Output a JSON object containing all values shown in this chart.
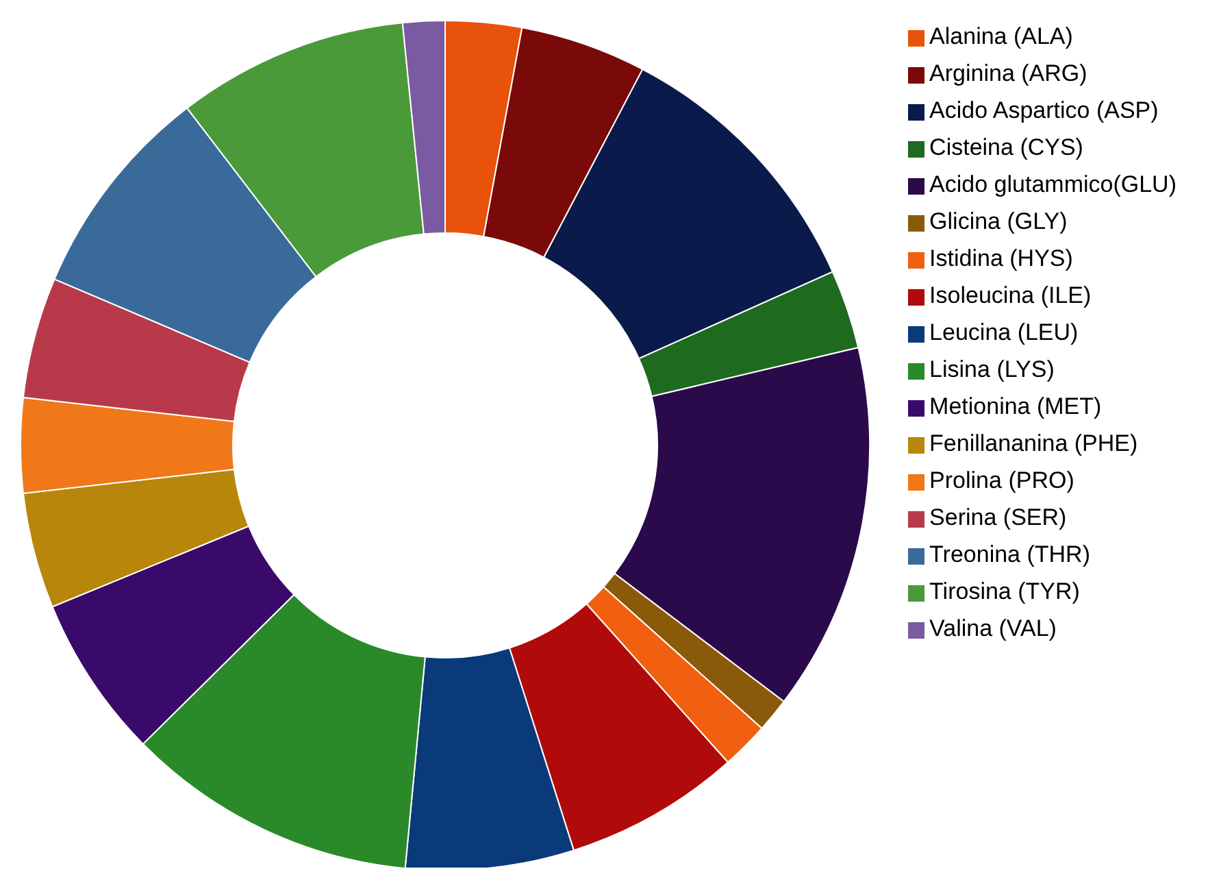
{
  "chart_data": {
    "type": "donut",
    "categories": [
      "Alanina (ALA)",
      "Arginina (ARG)",
      "Acido Aspartico (ASP)",
      "Cisteina (CYS)",
      "Acido glutammico(GLU)",
      "Glicina (GLY)",
      "Istidina (HYS)",
      "Isoleucina (ILE)",
      "Leucina (LEU)",
      "Lisina (LYS)",
      "Metionina (MET)",
      "Fenillananina (PHE)",
      "Prolina (PRO)",
      "Serina (SER)",
      "Treonina (THR)",
      "Tirosina (TYR)",
      "Valina (VAL)"
    ],
    "values": [
      2.9,
      4.8,
      10.6,
      3.0,
      14.0,
      1.3,
      1.8,
      6.7,
      6.4,
      11.1,
      6.2,
      4.4,
      3.6,
      4.6,
      8.2,
      8.8,
      1.6
    ],
    "colors": [
      "#e8520a",
      "#7a0a0a",
      "#0a1a4a",
      "#1e6a1e",
      "#2a0a4a",
      "#8a5a0a",
      "#f06010",
      "#b00a0a",
      "#0a3a7a",
      "#2a8a2a",
      "#3a0a6a",
      "#b8860b",
      "#f07818",
      "#b83a4a",
      "#3a6a9a",
      "#4a9a3a",
      "#7a5aa0"
    ],
    "legend": "right"
  }
}
